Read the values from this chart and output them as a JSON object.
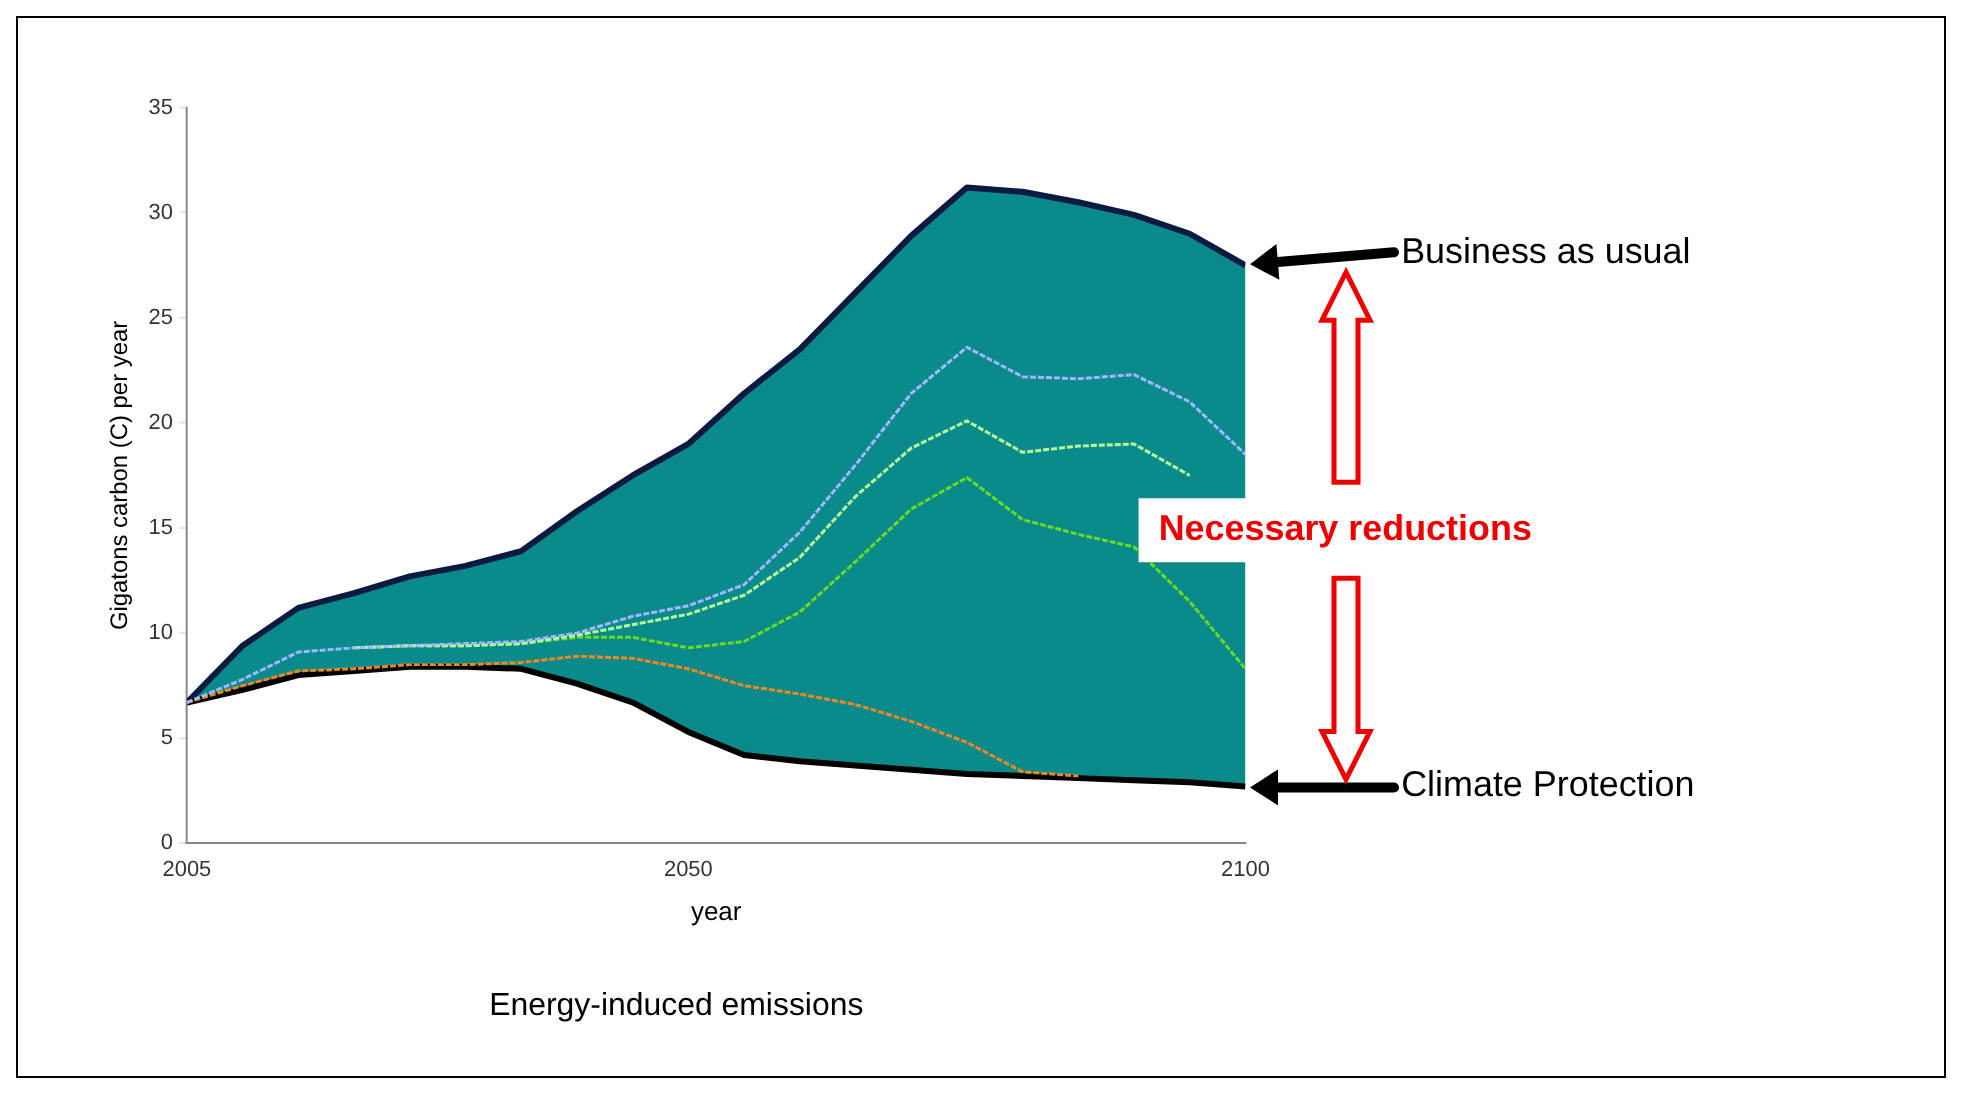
{
  "chart_data": {
    "type": "line",
    "annotations": [
      "Business as usual",
      "Climate Protection",
      "Necessary reductions",
      "Energy-induced emissions"
    ],
    "xlabel": "year",
    "ylabel": "Gigatons carbon (C) per year",
    "x": [
      2005,
      2010,
      2015,
      2020,
      2025,
      2030,
      2035,
      2040,
      2045,
      2050,
      2055,
      2060,
      2065,
      2070,
      2075,
      2080,
      2085,
      2090,
      2095,
      2100
    ],
    "series": [
      {
        "color": "#000000",
        "line_style": "solid",
        "values": [
          6.7,
          7.3,
          8.0,
          8.2,
          8.4,
          8.4,
          8.3,
          7.6,
          6.7,
          5.3,
          4.2,
          3.9,
          3.7,
          3.5,
          3.3,
          3.2,
          3.1,
          3.0,
          2.9,
          2.7
        ]
      },
      {
        "type": "area",
        "color": "#0a8a8a",
        "line_style": "solid",
        "values": [
          6.7,
          9.4,
          11.2,
          11.9,
          12.7,
          13.2,
          13.9,
          15.8,
          17.5,
          19.0,
          21.4,
          23.5,
          26.2,
          28.9,
          31.2,
          31.0,
          30.5,
          29.9,
          29.0,
          27.5
        ]
      },
      {
        "color": "#9fb8ff",
        "line_style": "dashed",
        "values": [
          6.7,
          7.8,
          9.1,
          9.3,
          9.4,
          9.5,
          9.6,
          10.0,
          10.8,
          11.3,
          12.3,
          14.8,
          18.0,
          21.4,
          23.6,
          22.2,
          22.1,
          22.3,
          21.0,
          18.5
        ]
      },
      {
        "color": "#b8ff9a",
        "line_style": "dashed",
        "values": [
          null,
          null,
          null,
          9.3,
          9.4,
          9.4,
          9.5,
          9.9,
          10.4,
          10.9,
          11.8,
          13.6,
          16.5,
          18.8,
          20.1,
          18.6,
          18.9,
          19.0,
          17.5,
          null
        ]
      },
      {
        "color": "#66dd22",
        "line_style": "dashed",
        "values": [
          null,
          null,
          null,
          9.3,
          9.4,
          9.4,
          9.5,
          9.8,
          9.8,
          9.3,
          9.6,
          11.0,
          13.4,
          15.9,
          17.4,
          15.4,
          14.7,
          14.1,
          11.5,
          8.3
        ]
      },
      {
        "color": "#ee8822",
        "line_style": "dashed",
        "values": [
          6.7,
          7.5,
          8.2,
          8.3,
          8.5,
          8.5,
          8.6,
          8.9,
          8.8,
          8.3,
          7.5,
          7.1,
          6.6,
          5.8,
          4.8,
          3.4,
          3.2,
          null,
          null,
          null
        ]
      }
    ],
    "xlim": [
      2005,
      2100
    ],
    "xticks": [
      2005,
      2050,
      2100
    ],
    "ylim": [
      0,
      35
    ],
    "yticks": [
      0,
      5,
      10,
      15,
      20,
      25,
      30,
      35
    ],
    "grid": false,
    "legend": false
  }
}
